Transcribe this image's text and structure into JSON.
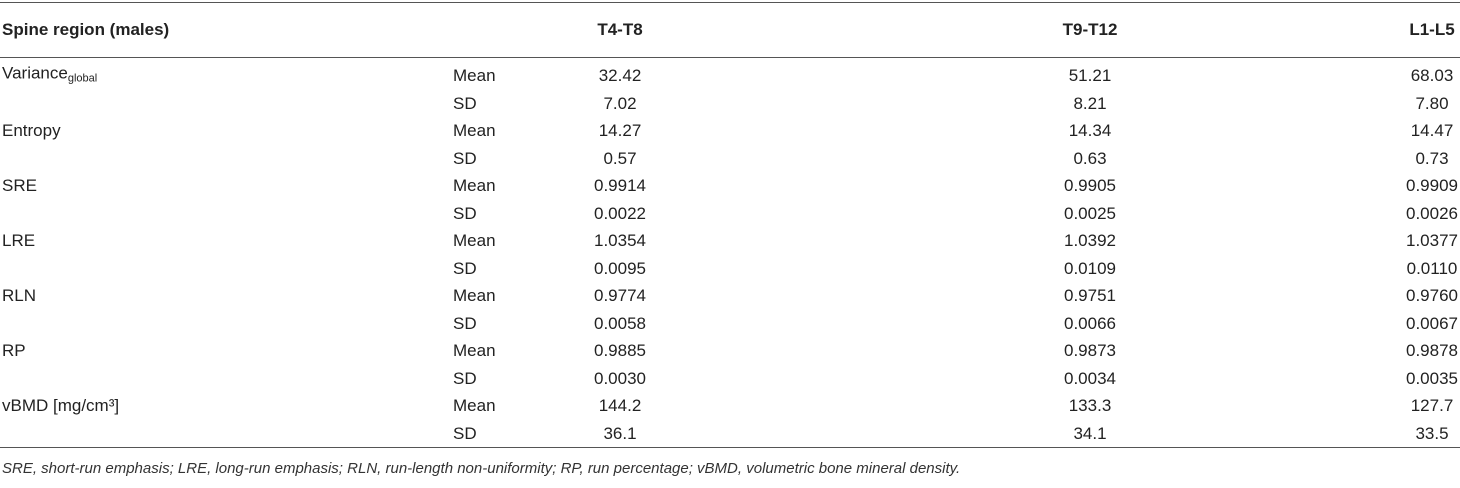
{
  "table": {
    "header": {
      "label": "Spine region (males)",
      "columns": [
        "T4-T8",
        "T9-T12",
        "L1-L5"
      ]
    },
    "groups": [
      {
        "name": "Variance",
        "subscript": "global",
        "rows": [
          {
            "stat": "Mean",
            "values": [
              "32.42",
              "51.21",
              "68.03"
            ]
          },
          {
            "stat": "SD",
            "values": [
              "7.02",
              "8.21",
              "7.80"
            ]
          }
        ]
      },
      {
        "name": "Entropy",
        "rows": [
          {
            "stat": "Mean",
            "values": [
              "14.27",
              "14.34",
              "14.47"
            ]
          },
          {
            "stat": "SD",
            "values": [
              "0.57",
              "0.63",
              "0.73"
            ]
          }
        ]
      },
      {
        "name": "SRE",
        "rows": [
          {
            "stat": "Mean",
            "values": [
              "0.9914",
              "0.9905",
              "0.9909"
            ]
          },
          {
            "stat": "SD",
            "values": [
              "0.0022",
              "0.0025",
              "0.0026"
            ]
          }
        ]
      },
      {
        "name": "LRE",
        "rows": [
          {
            "stat": "Mean",
            "values": [
              "1.0354",
              "1.0392",
              "1.0377"
            ]
          },
          {
            "stat": "SD",
            "values": [
              "0.0095",
              "0.0109",
              "0.0110"
            ]
          }
        ]
      },
      {
        "name": "RLN",
        "rows": [
          {
            "stat": "Mean",
            "values": [
              "0.9774",
              "0.9751",
              "0.9760"
            ]
          },
          {
            "stat": "SD",
            "values": [
              "0.0058",
              "0.0066",
              "0.0067"
            ]
          }
        ]
      },
      {
        "name": "RP",
        "rows": [
          {
            "stat": "Mean",
            "values": [
              "0.9885",
              "0.9873",
              "0.9878"
            ]
          },
          {
            "stat": "SD",
            "values": [
              "0.0030",
              "0.0034",
              "0.0035"
            ]
          }
        ]
      },
      {
        "name": "vBMD [mg/cm³]",
        "rows": [
          {
            "stat": "Mean",
            "values": [
              "144.2",
              "133.3",
              "127.7"
            ]
          },
          {
            "stat": "SD",
            "values": [
              "36.1",
              "34.1",
              "33.5"
            ]
          }
        ]
      }
    ],
    "footnote": "SRE, short-run emphasis; LRE, long-run emphasis; RLN, run-length non-uniformity; RP, run percentage; vBMD, volumetric bone mineral density."
  }
}
